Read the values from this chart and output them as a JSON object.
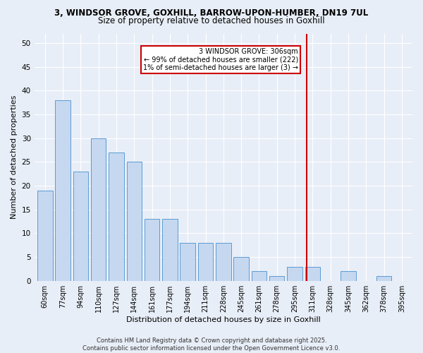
{
  "title1": "3, WINDSOR GROVE, GOXHILL, BARROW-UPON-HUMBER, DN19 7UL",
  "title2": "Size of property relative to detached houses in Goxhill",
  "xlabel": "Distribution of detached houses by size in Goxhill",
  "ylabel": "Number of detached properties",
  "categories": [
    "60sqm",
    "77sqm",
    "94sqm",
    "110sqm",
    "127sqm",
    "144sqm",
    "161sqm",
    "177sqm",
    "194sqm",
    "211sqm",
    "228sqm",
    "245sqm",
    "261sqm",
    "278sqm",
    "295sqm",
    "311sqm",
    "328sqm",
    "345sqm",
    "362sqm",
    "378sqm",
    "395sqm"
  ],
  "values": [
    19,
    38,
    23,
    30,
    27,
    25,
    13,
    13,
    8,
    8,
    8,
    5,
    2,
    1,
    3,
    3,
    0,
    2,
    0,
    1,
    0
  ],
  "bar_color": "#c5d8f0",
  "bar_edge_color": "#5b9bd5",
  "background_color": "#e8eef7",
  "grid_color": "#ffffff",
  "annotation_text": "3 WINDSOR GROVE: 306sqm\n← 99% of detached houses are smaller (222)\n1% of semi-detached houses are larger (3) →",
  "annotation_box_color": "#ffffff",
  "annotation_box_edge": "#cc0000",
  "annotation_text_color": "#000000",
  "red_line_color": "#cc0000",
  "footer_text": "Contains HM Land Registry data © Crown copyright and database right 2025.\nContains public sector information licensed under the Open Government Licence v3.0.",
  "ylim": [
    0,
    52
  ],
  "title1_fontsize": 8.5,
  "title2_fontsize": 8.5,
  "tick_fontsize": 7,
  "ylabel_fontsize": 8,
  "xlabel_fontsize": 8,
  "footer_fontsize": 6,
  "annot_fontsize": 7
}
